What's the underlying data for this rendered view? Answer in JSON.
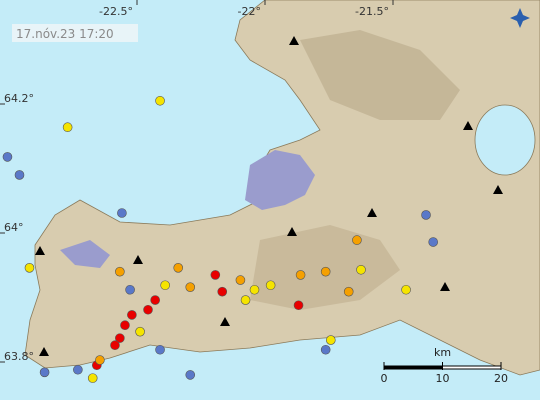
{
  "timestamp": "17.nóv.23 17:20",
  "longitude_labels": [
    {
      "value": -22.5,
      "label": "-22.5°"
    },
    {
      "value": -22,
      "label": "-22°"
    },
    {
      "value": -21.5,
      "label": "-21.5°"
    }
  ],
  "latitude_labels": [
    {
      "value": 64.2,
      "label": "64.2°"
    },
    {
      "value": 64,
      "label": "64°"
    },
    {
      "value": 63.8,
      "label": "63.8°"
    }
  ],
  "scale": {
    "unit": "km",
    "ticks": [
      0,
      10,
      20
    ]
  },
  "quakes": [
    {
      "lon": -22.41,
      "lat": 64.205,
      "color": "#f5e400"
    },
    {
      "lon": -22.771,
      "lat": 64.164,
      "color": "#f5e400"
    },
    {
      "lon": -23.006,
      "lat": 64.118,
      "color": "#5a78c8"
    },
    {
      "lon": -22.959,
      "lat": 64.09,
      "color": "#5a78c8"
    },
    {
      "lon": -22.559,
      "lat": 64.031,
      "color": "#5a78c8"
    },
    {
      "lon": -22.92,
      "lat": 63.946,
      "color": "#f5e400"
    },
    {
      "lon": -22.567,
      "lat": 63.94,
      "color": "#f5a000"
    },
    {
      "lon": -22.339,
      "lat": 63.946,
      "color": "#f5a000"
    },
    {
      "lon": -22.194,
      "lat": 63.935,
      "color": "#e80000"
    },
    {
      "lon": -22.096,
      "lat": 63.927,
      "color": "#f5a000"
    },
    {
      "lon": -21.978,
      "lat": 63.919,
      "color": "#f5e400"
    },
    {
      "lon": -21.861,
      "lat": 63.935,
      "color": "#f5a000"
    },
    {
      "lon": -21.763,
      "lat": 63.94,
      "color": "#f5a000"
    },
    {
      "lon": -21.625,
      "lat": 63.943,
      "color": "#f5e400"
    },
    {
      "lon": -21.641,
      "lat": 63.989,
      "color": "#f5a000"
    },
    {
      "lon": -21.449,
      "lat": 63.912,
      "color": "#f5e400"
    },
    {
      "lon": -21.371,
      "lat": 64.028,
      "color": "#5a78c8"
    },
    {
      "lon": -21.343,
      "lat": 63.986,
      "color": "#5a78c8"
    },
    {
      "lon": -22.167,
      "lat": 63.909,
      "color": "#e80000"
    },
    {
      "lon": -22.076,
      "lat": 63.896,
      "color": "#f5e400"
    },
    {
      "lon": -21.869,
      "lat": 63.888,
      "color": "#e80000"
    },
    {
      "lon": -22.429,
      "lat": 63.896,
      "color": "#e80000"
    },
    {
      "lon": -22.457,
      "lat": 63.881,
      "color": "#e80000"
    },
    {
      "lon": -22.52,
      "lat": 63.873,
      "color": "#e80000"
    },
    {
      "lon": -22.547,
      "lat": 63.857,
      "color": "#e80000"
    },
    {
      "lon": -22.567,
      "lat": 63.837,
      "color": "#e80000"
    },
    {
      "lon": -22.586,
      "lat": 63.826,
      "color": "#e80000"
    },
    {
      "lon": -22.657,
      "lat": 63.795,
      "color": "#e80000"
    },
    {
      "lon": -22.488,
      "lat": 63.847,
      "color": "#f5e400"
    },
    {
      "lon": -22.41,
      "lat": 63.819,
      "color": "#5a78c8"
    },
    {
      "lon": -22.673,
      "lat": 63.775,
      "color": "#f5e400"
    },
    {
      "lon": -22.861,
      "lat": 63.784,
      "color": "#5a78c8"
    },
    {
      "lon": -22.292,
      "lat": 63.78,
      "color": "#5a78c8"
    },
    {
      "lon": -21.743,
      "lat": 63.834,
      "color": "#f5e400"
    },
    {
      "lon": -21.673,
      "lat": 63.909,
      "color": "#f5a000"
    },
    {
      "lon": -22.645,
      "lat": 63.803,
      "color": "#f5a000"
    },
    {
      "lon": -22.527,
      "lat": 63.912,
      "color": "#5a78c8"
    },
    {
      "lon": -22.39,
      "lat": 63.919,
      "color": "#f5e400"
    },
    {
      "lon": -22.292,
      "lat": 63.916,
      "color": "#f5a000"
    },
    {
      "lon": -22.041,
      "lat": 63.912,
      "color": "#f5e400"
    },
    {
      "lon": -21.763,
      "lat": 63.819,
      "color": "#5a78c8"
    },
    {
      "lon": -22.731,
      "lat": 63.788,
      "color": "#5a78c8"
    }
  ]
}
